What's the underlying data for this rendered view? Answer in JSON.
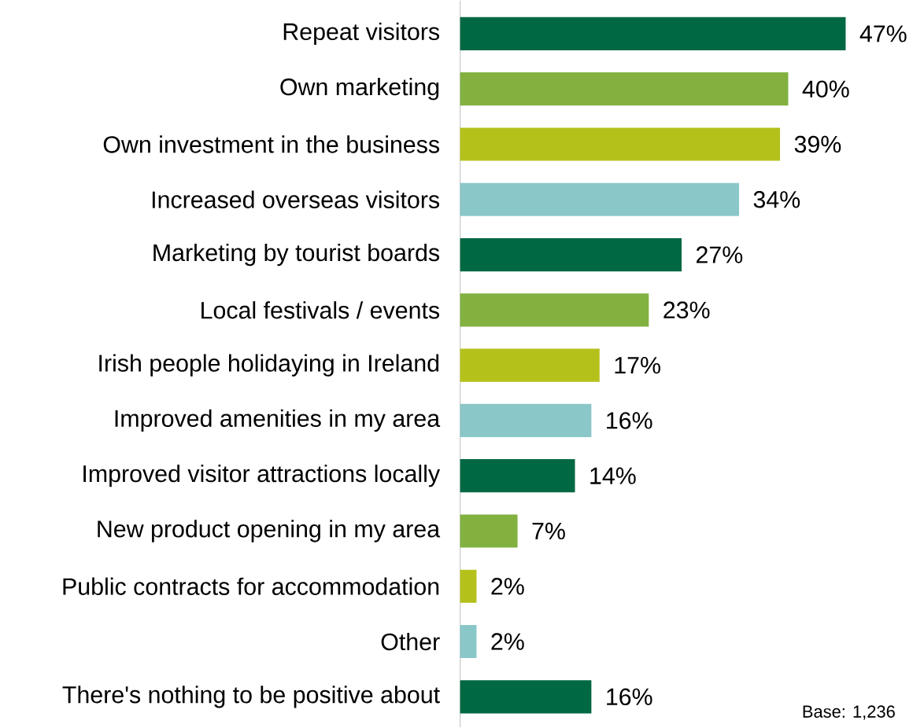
{
  "chart_data": {
    "type": "bar",
    "orientation": "horizontal",
    "categories": [
      "Repeat visitors",
      "Own marketing",
      "Own investment in the business",
      "Increased overseas visitors",
      "Marketing by tourist boards",
      "Local festivals / events",
      "Irish people holidaying in Ireland",
      "Improved amenities in my area",
      "Improved visitor attractions locally",
      "New product opening in my area",
      "Public contracts for accommodation",
      "Other",
      "There's nothing to be positive about"
    ],
    "values": [
      47,
      40,
      39,
      34,
      27,
      23,
      17,
      16,
      14,
      7,
      2,
      2,
      16
    ],
    "value_labels": [
      "47%",
      "40%",
      "39%",
      "34%",
      "27%",
      "23%",
      "17%",
      "16%",
      "14%",
      "7%",
      "2%",
      "2%",
      "16%"
    ],
    "colors": [
      "#006843",
      "#82b140",
      "#b5c11b",
      "#8ac7c8",
      "#006843",
      "#82b140",
      "#b5c11b",
      "#8ac7c8",
      "#006843",
      "#82b140",
      "#b5c11b",
      "#8ac7c8",
      "#006843"
    ],
    "annotations": [
      "Base: 1,236"
    ]
  }
}
